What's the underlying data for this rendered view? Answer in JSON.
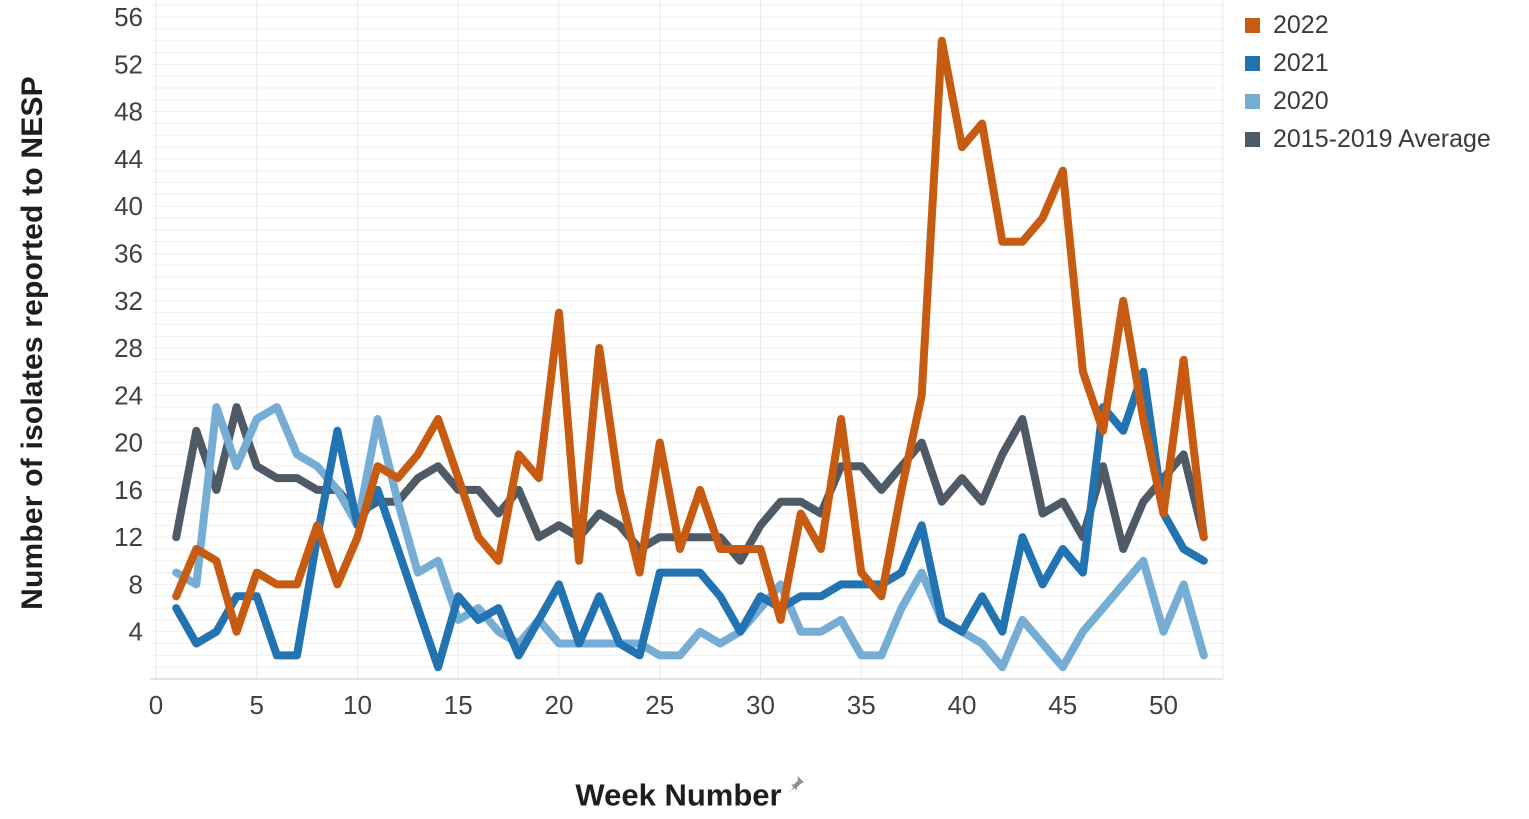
{
  "page": {
    "background": "#ffffff"
  },
  "chart_data": {
    "type": "line",
    "title": "",
    "xlabel": "Week Number",
    "ylabel": "Number of isolates reported to NESP",
    "xlim": [
      0,
      53
    ],
    "ylim": [
      0,
      57.5
    ],
    "x_ticks": [
      0,
      5,
      10,
      15,
      20,
      25,
      30,
      35,
      40,
      45,
      50
    ],
    "y_ticks": [
      4,
      8,
      12,
      16,
      20,
      24,
      28,
      32,
      36,
      40,
      44,
      48,
      52,
      56
    ],
    "grid": "horizontal minor every 1 unit; vertical at every 5 weeks",
    "legend_position": "top-right",
    "x": [
      1,
      2,
      3,
      4,
      5,
      6,
      7,
      8,
      9,
      10,
      11,
      12,
      13,
      14,
      15,
      16,
      17,
      18,
      19,
      20,
      21,
      22,
      23,
      24,
      25,
      26,
      27,
      28,
      29,
      30,
      31,
      32,
      33,
      34,
      35,
      36,
      37,
      38,
      39,
      40,
      41,
      42,
      43,
      44,
      45,
      46,
      47,
      48,
      49,
      50,
      51,
      52
    ],
    "series": [
      {
        "name": "2022",
        "color": "#c75b12",
        "values": [
          7,
          11,
          10,
          4,
          9,
          8,
          8,
          13,
          8,
          12,
          18,
          17,
          19,
          22,
          17,
          12,
          10,
          19,
          17,
          31,
          10,
          28,
          16,
          9,
          20,
          11,
          16,
          11,
          11,
          11,
          5,
          14,
          11,
          22,
          9,
          7,
          16,
          24,
          54,
          45,
          47,
          37,
          37,
          39,
          43,
          26,
          21,
          32,
          22,
          14,
          27,
          12
        ]
      },
      {
        "name": "2021",
        "color": "#2273b2",
        "values": [
          6,
          3,
          4,
          7,
          7,
          2,
          2,
          12,
          21,
          13,
          16,
          11,
          6,
          1,
          7,
          5,
          6,
          2,
          5,
          8,
          3,
          7,
          3,
          2,
          9,
          9,
          9,
          7,
          4,
          7,
          6,
          7,
          7,
          8,
          8,
          8,
          9,
          13,
          5,
          4,
          7,
          4,
          12,
          8,
          11,
          9,
          23,
          21,
          26,
          14,
          11,
          10
        ]
      },
      {
        "name": "2020",
        "color": "#76add4",
        "values": [
          9,
          8,
          23,
          18,
          22,
          23,
          19,
          18,
          16,
          13,
          22,
          15,
          9,
          10,
          5,
          6,
          4,
          3,
          5,
          3,
          3,
          3,
          3,
          3,
          2,
          2,
          4,
          3,
          4,
          6,
          8,
          4,
          4,
          5,
          2,
          2,
          6,
          9,
          5,
          4,
          3,
          1,
          5,
          3,
          1,
          4,
          6,
          8,
          10,
          4,
          8,
          2
        ]
      },
      {
        "name": "2015-2019 Average",
        "color": "#4f5a67",
        "values": [
          12,
          21,
          16,
          23,
          18,
          17,
          17,
          16,
          16,
          14,
          15,
          15,
          17,
          18,
          16,
          16,
          14,
          16,
          12,
          13,
          12,
          14,
          13,
          11,
          12,
          12,
          12,
          12,
          10,
          13,
          15,
          15,
          14,
          18,
          18,
          16,
          18,
          20,
          15,
          17,
          15,
          19,
          22,
          14,
          15,
          12,
          18,
          11,
          15,
          17,
          19,
          12
        ]
      }
    ],
    "draw_order": [
      "2015-2019 Average",
      "2020",
      "2021",
      "2022"
    ]
  },
  "axes": {
    "y_title": "Number of isolates reported to NESP",
    "x_title": "Week Number"
  },
  "legend": {
    "items": [
      {
        "label": "2022",
        "color": "#c75b12"
      },
      {
        "label": "2021",
        "color": "#2273b2"
      },
      {
        "label": "2020",
        "color": "#76add4"
      },
      {
        "label": "2015-2019 Average",
        "color": "#4f5a67"
      }
    ]
  },
  "icons": {
    "pin": "pushpin-icon"
  },
  "style_colors": {
    "tick_label": "#414141",
    "grid_minor_h": "#f1efee",
    "grid_v": "#eceae8",
    "axis_line": "#dddbd9"
  }
}
